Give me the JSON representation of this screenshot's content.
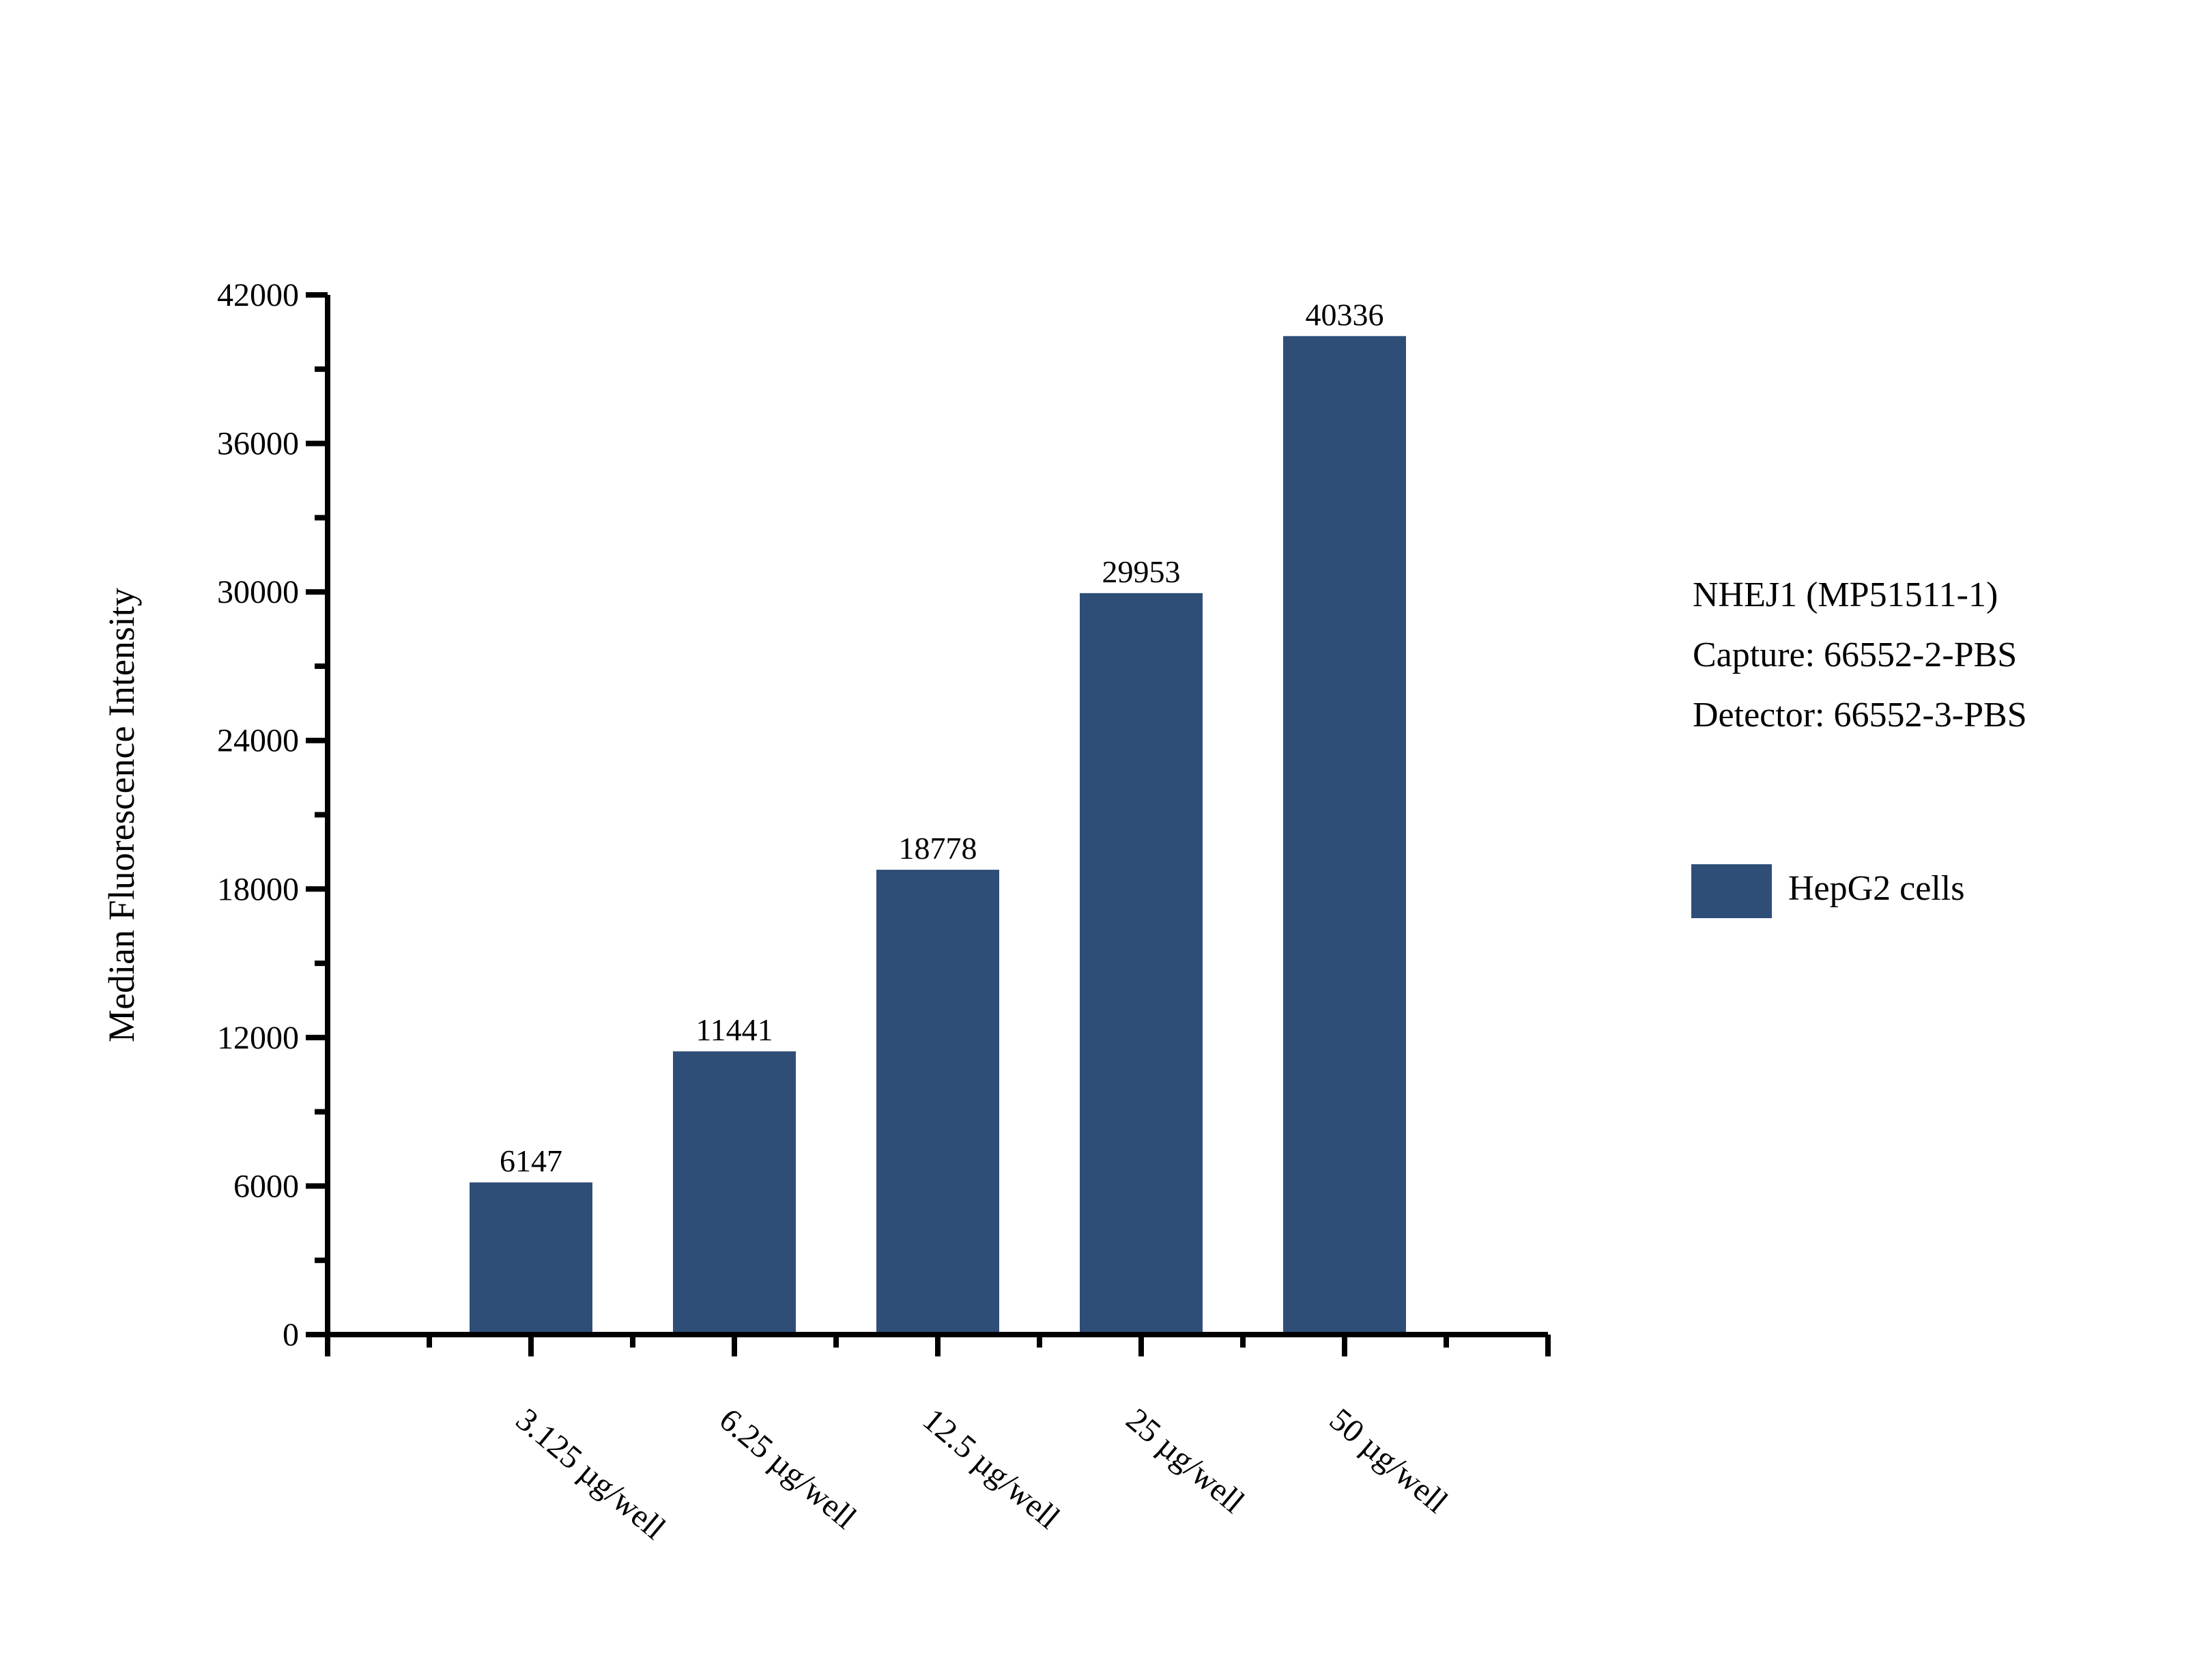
{
  "chart_data": {
    "type": "bar",
    "title": "",
    "categories": [
      "3.125 µg/well",
      "6.25 µg/well",
      "12.5 µg/well",
      "25 µg/well",
      "50 µg/well"
    ],
    "values": [
      6147,
      11441,
      18778,
      29953,
      40336
    ],
    "value_labels": [
      "6147",
      "11441",
      "18778",
      "29953",
      "40336"
    ],
    "xlabel": "",
    "ylabel": "Median Fluorescence Intensity",
    "ylim": [
      0,
      42000
    ],
    "ytick_major_interval": 6000,
    "ytick_minor_interval": 3000,
    "ytick_labels": [
      "0",
      "6000",
      "12000",
      "18000",
      "24000",
      "30000",
      "36000",
      "42000"
    ],
    "grid": "off",
    "bar_color": "#2E4E77",
    "axis_color": "#000000",
    "text_color": "#000000",
    "background_color": "#ffffff",
    "annotation": {
      "lines": [
        "NHEJ1 (MP51511-1)",
        "Capture: 66552-2-PBS",
        "Detector: 66552-3-PBS"
      ]
    },
    "legend": {
      "position": "right",
      "swatch_color": "#2E4E77",
      "entries": [
        "HepG2 cells"
      ]
    }
  }
}
